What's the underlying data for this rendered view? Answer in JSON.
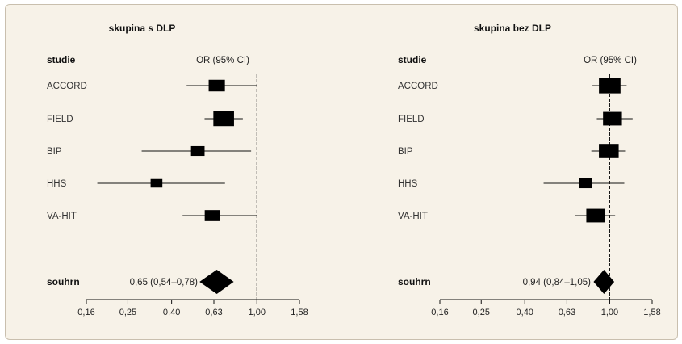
{
  "chart_data": [
    {
      "type": "forest",
      "title": "skupina s DLP",
      "column_header": "studie",
      "effect_header": "OR (95% CI)",
      "x_scale": "log",
      "x_ticks": [
        "0,16",
        "0,25",
        "0,40",
        "0,63",
        "1,00",
        "1,58"
      ],
      "x_tick_values": [
        0.16,
        0.25,
        0.4,
        0.63,
        1.0,
        1.58
      ],
      "xlim": [
        0.16,
        1.58
      ],
      "reference_line": 1.0,
      "studies": [
        {
          "name": "ACCORD",
          "or": 0.65,
          "lo": 0.47,
          "hi": 1.0,
          "weight": 0.55
        },
        {
          "name": "FIELD",
          "or": 0.7,
          "lo": 0.57,
          "hi": 0.86,
          "weight": 0.8
        },
        {
          "name": "BIP",
          "or": 0.53,
          "lo": 0.29,
          "hi": 0.94,
          "weight": 0.4
        },
        {
          "name": "HHS",
          "or": 0.34,
          "lo": 0.18,
          "hi": 0.71,
          "weight": 0.3
        },
        {
          "name": "VA-HIT",
          "or": 0.62,
          "lo": 0.45,
          "hi": 1.0,
          "weight": 0.5
        }
      ],
      "summary": {
        "label": "souhrn",
        "text": "0,65 (0,54–0,78)",
        "or": 0.65,
        "lo": 0.54,
        "hi": 0.78
      }
    },
    {
      "type": "forest",
      "title": "skupina bez DLP",
      "column_header": "studie",
      "effect_header": "OR (95% CI)",
      "x_scale": "log",
      "x_ticks": [
        "0,16",
        "0,25",
        "0,40",
        "0,63",
        "1,00",
        "1,58"
      ],
      "x_tick_values": [
        0.16,
        0.25,
        0.4,
        0.63,
        1.0,
        1.58
      ],
      "xlim": [
        0.16,
        1.58
      ],
      "reference_line": 1.0,
      "studies": [
        {
          "name": "ACCORD",
          "or": 1.0,
          "lo": 0.83,
          "hi": 1.2,
          "weight": 0.85
        },
        {
          "name": "FIELD",
          "or": 1.03,
          "lo": 0.87,
          "hi": 1.28,
          "weight": 0.7
        },
        {
          "name": "BIP",
          "or": 0.99,
          "lo": 0.82,
          "hi": 1.18,
          "weight": 0.75
        },
        {
          "name": "HHS",
          "or": 0.77,
          "lo": 0.49,
          "hi": 1.17,
          "weight": 0.4
        },
        {
          "name": "VA-HIT",
          "or": 0.86,
          "lo": 0.69,
          "hi": 1.06,
          "weight": 0.7
        }
      ],
      "summary": {
        "label": "souhrn",
        "text": "0,94 (0,84–1,05)",
        "or": 0.94,
        "lo": 0.84,
        "hi": 1.05
      }
    }
  ]
}
